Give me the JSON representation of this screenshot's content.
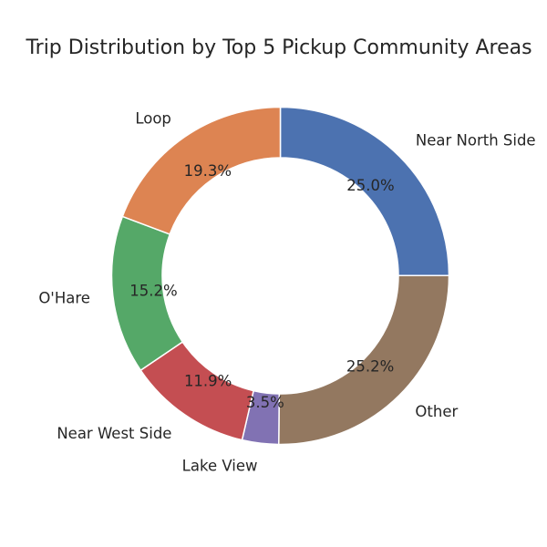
{
  "chart_data": {
    "type": "pie",
    "donut": true,
    "title": "Trip Distribution by Top 5 Pickup Community Areas",
    "start_angle_deg": 90,
    "direction": "clockwise",
    "slices": [
      {
        "label": "Near North Side",
        "value": 25.0,
        "pct_label": "25.0%",
        "color": "#4c72b0"
      },
      {
        "label": "Other",
        "value": 25.2,
        "pct_label": "25.2%",
        "color": "#937860"
      },
      {
        "label": "Lake View",
        "value": 3.5,
        "pct_label": "3.5%",
        "color": "#8172b3"
      },
      {
        "label": "Near West Side",
        "value": 11.9,
        "pct_label": "11.9%",
        "color": "#c44e52"
      },
      {
        "label": "O'Hare",
        "value": 15.2,
        "pct_label": "15.2%",
        "color": "#55a868"
      },
      {
        "label": "Loop",
        "value": 19.3,
        "pct_label": "19.3%",
        "color": "#dd8452"
      }
    ]
  }
}
